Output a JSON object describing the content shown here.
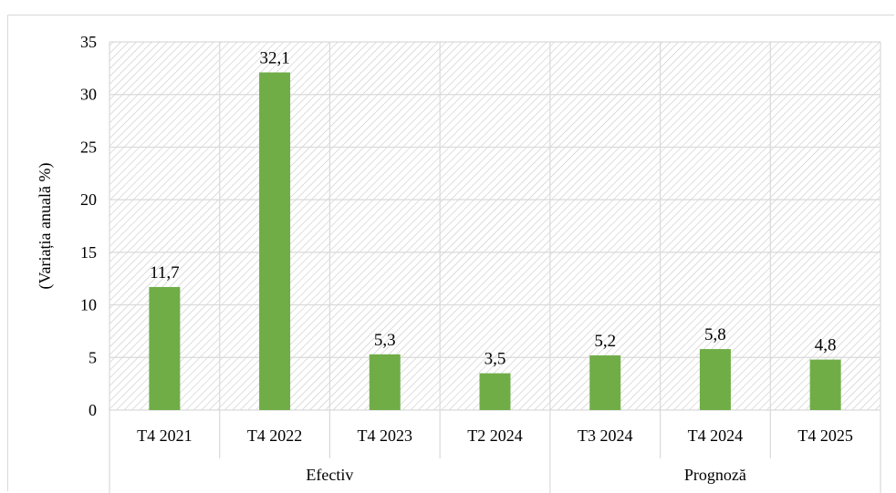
{
  "chart_data": {
    "type": "bar",
    "categories": [
      "T4 2021",
      "T4 2022",
      "T4 2023",
      "T2 2024",
      "T3 2024",
      "T4 2024",
      "T4 2025"
    ],
    "values": [
      11.7,
      32.1,
      5.3,
      3.5,
      5.2,
      5.8,
      4.8
    ],
    "data_labels": [
      "11,7",
      "32,1",
      "5,3",
      "3,5",
      "5,2",
      "5,8",
      "4,8"
    ],
    "groups": [
      {
        "label": "Efectiv",
        "categories": [
          "T4 2021",
          "T4 2022",
          "T4 2023",
          "T2 2024"
        ]
      },
      {
        "label": "Prognoză",
        "categories": [
          "T3 2024",
          "T4 2024",
          "T4 2025"
        ]
      }
    ],
    "ylabel": "(Variația anuală %)",
    "ylim": [
      0,
      35
    ],
    "yticks": [
      0,
      5,
      10,
      15,
      20,
      25,
      30,
      35
    ],
    "grid": true,
    "plot_background": "diagonal-hatch",
    "colors": {
      "bar": "#70ad47",
      "grid": "#d9d9d9",
      "hatch": "#c8c8c8"
    }
  }
}
